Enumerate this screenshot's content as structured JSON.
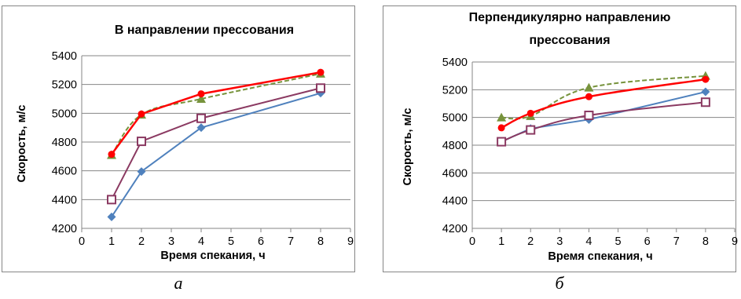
{
  "chart_data": [
    {
      "type": "line",
      "panel_label": "а",
      "title": "В направлении прессования",
      "title_lines": [
        "В направлении прессования"
      ],
      "xlabel": "Время спекания, ч",
      "ylabel": "Скорость, м/с",
      "xlim": [
        0,
        9
      ],
      "ylim": [
        4200,
        5400
      ],
      "xticks": [
        0,
        1,
        2,
        3,
        4,
        5,
        6,
        7,
        8,
        9
      ],
      "yticks": [
        4200,
        4400,
        4600,
        4800,
        5000,
        5200,
        5400
      ],
      "grid": "horizontal",
      "legend": "none",
      "series": [
        {
          "color": "#4f81bd",
          "marker": "diamond",
          "dashed": false,
          "x": [
            1,
            2,
            4,
            8
          ],
          "y": [
            4280,
            4595,
            4900,
            5140
          ]
        },
        {
          "color": "#8b3a62",
          "marker": "square-open",
          "dashed": false,
          "x": [
            1,
            2,
            4,
            8
          ],
          "y": [
            4400,
            4805,
            4965,
            5175
          ]
        },
        {
          "color": "#77933c",
          "marker": "triangle",
          "dashed": true,
          "x": [
            1,
            2,
            4,
            8
          ],
          "y": [
            4710,
            4990,
            5100,
            5275
          ]
        },
        {
          "color": "#ff0000",
          "marker": "circle",
          "dashed": false,
          "x": [
            1,
            2,
            4,
            8
          ],
          "y": [
            4715,
            4995,
            5135,
            5285
          ]
        }
      ]
    },
    {
      "type": "line",
      "panel_label": "б",
      "title": "Перпендикулярно направлению прессования",
      "title_lines": [
        "Перпендикулярно направлению",
        "прессования"
      ],
      "xlabel": "Время спекания, ч",
      "ylabel": "Скорость, м/с",
      "xlim": [
        0,
        9
      ],
      "ylim": [
        4200,
        5400
      ],
      "xticks": [
        0,
        1,
        2,
        3,
        4,
        5,
        6,
        7,
        8,
        9
      ],
      "yticks": [
        4200,
        4400,
        4600,
        4800,
        5000,
        5200,
        5400
      ],
      "grid": "horizontal",
      "legend": "none",
      "series": [
        {
          "color": "#4f81bd",
          "marker": "diamond",
          "dashed": false,
          "x": [
            1,
            2,
            4,
            8
          ],
          "y": [
            4825,
            4920,
            4985,
            5185
          ]
        },
        {
          "color": "#8b3a62",
          "marker": "square-open",
          "dashed": false,
          "x": [
            1,
            2,
            4,
            8
          ],
          "y": [
            4825,
            4910,
            5015,
            5110
          ]
        },
        {
          "color": "#77933c",
          "marker": "triangle",
          "dashed": true,
          "x": [
            1,
            2,
            4,
            8
          ],
          "y": [
            5000,
            5010,
            5215,
            5300
          ]
        },
        {
          "color": "#ff0000",
          "marker": "circle",
          "dashed": false,
          "x": [
            1,
            2,
            4,
            8
          ],
          "y": [
            4925,
            5030,
            5150,
            5275
          ]
        }
      ]
    }
  ]
}
